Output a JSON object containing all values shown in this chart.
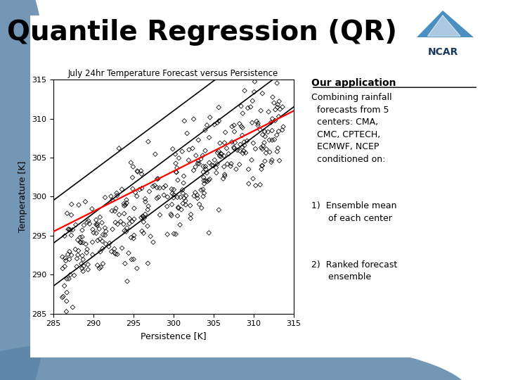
{
  "title": "Quantile Regression (QR)",
  "title_fontsize": 28,
  "title_fontweight": "bold",
  "bg_color": "#ffffff",
  "plot_title": "July 24hr Temperature Forecast versus Persistence",
  "xlabel": "Persistence [K]",
  "ylabel": "Temperature [K]",
  "xlim": [
    285,
    315
  ],
  "ylim": [
    285,
    315
  ],
  "xticks": [
    285,
    290,
    295,
    300,
    305,
    310,
    315
  ],
  "yticks": [
    285,
    290,
    295,
    300,
    305,
    310,
    315
  ],
  "text_application": "Our application",
  "text_body": "Combining rainfall\n  forecasts from 5\n  centers: CMA,\n  CMC, CPTECH,\n  ECMWF, NCEP\n  conditioned on:",
  "text_item1": "1)  Ensemble mean\n      of each center",
  "text_item2": "2)  Ranked forecast\n      ensemble",
  "regression_lines_black": [
    {
      "x": [
        285,
        315
      ],
      "y": [
        299.5,
        322.5
      ]
    },
    {
      "x": [
        285,
        315
      ],
      "y": [
        294.0,
        317.0
      ]
    },
    {
      "x": [
        285,
        315
      ],
      "y": [
        288.5,
        311.5
      ]
    }
  ],
  "regression_line_red": {
    "x": [
      285,
      315
    ],
    "y": [
      295.5,
      311.0
    ]
  },
  "blue_dec_color": "#5b85a8",
  "seed": 42,
  "n_points": 380
}
